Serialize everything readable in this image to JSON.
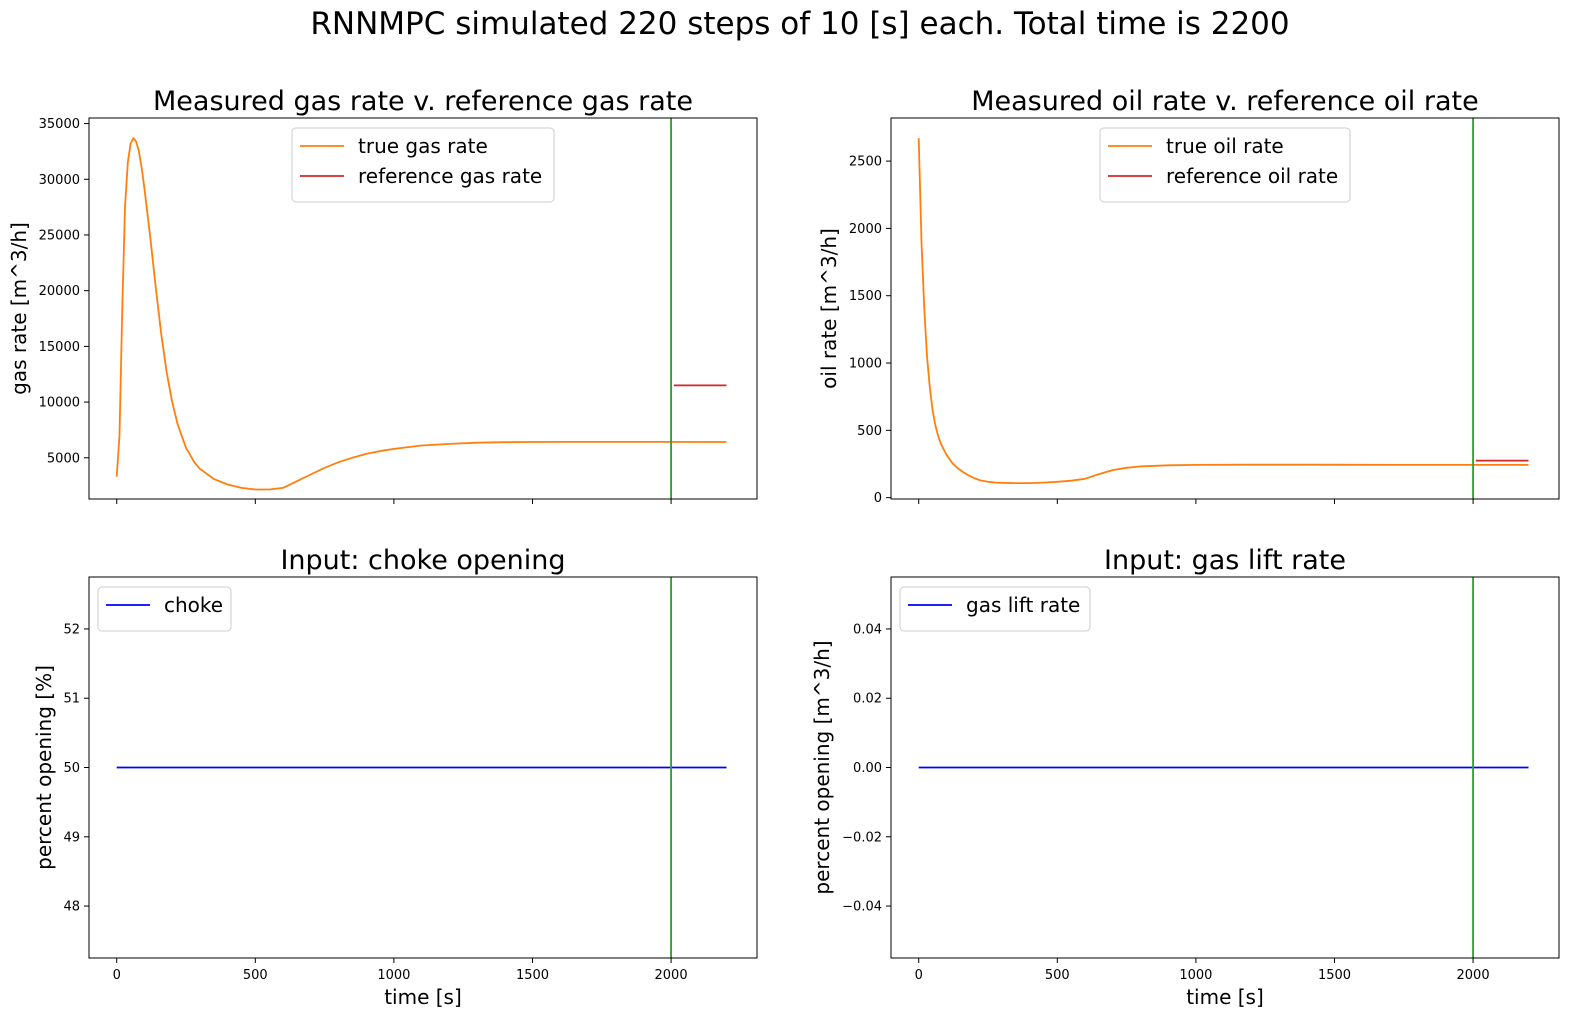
{
  "figure": {
    "suptitle": "RNNMPC simulated 220 steps of 10 [s] each. Total time is 2200"
  },
  "colors": {
    "true_rate": "#ff7f0e",
    "reference": "#d62728",
    "input": "#0000ff",
    "marker": "#2ca02c"
  },
  "chart_data": [
    {
      "type": "line",
      "title": "Measured gas rate v. reference gas rate",
      "xlabel": "",
      "ylabel": "gas rate [m^3/h]",
      "xlim": [
        -100,
        2310
      ],
      "ylim": [
        1300,
        35500
      ],
      "xticks": [
        0,
        500,
        1000,
        1500,
        2000
      ],
      "show_xtick_labels": false,
      "yticks": [
        5000,
        10000,
        15000,
        20000,
        25000,
        30000,
        35000
      ],
      "ytick_labels": [
        "5000",
        "10000",
        "15000",
        "20000",
        "25000",
        "30000",
        "35000"
      ],
      "grid": false,
      "legend": "upper center",
      "vline_x": 2000,
      "series": [
        {
          "name": "true gas rate",
          "color_key": "true_rate",
          "x": [
            0,
            10,
            20,
            30,
            40,
            50,
            60,
            70,
            80,
            90,
            100,
            120,
            140,
            160,
            180,
            200,
            220,
            250,
            280,
            300,
            350,
            400,
            450,
            500,
            550,
            600,
            650,
            700,
            750,
            800,
            850,
            900,
            950,
            1000,
            1100,
            1200,
            1300,
            1400,
            1500,
            1600,
            1700,
            1800,
            1900,
            2000,
            2100,
            2200
          ],
          "y": [
            3300,
            7000,
            18500,
            27500,
            31500,
            33200,
            33700,
            33400,
            32500,
            31000,
            29200,
            25000,
            20500,
            16200,
            12700,
            10000,
            8000,
            5900,
            4600,
            4000,
            3100,
            2600,
            2300,
            2150,
            2150,
            2300,
            2900,
            3500,
            4100,
            4600,
            5000,
            5350,
            5600,
            5800,
            6100,
            6250,
            6350,
            6400,
            6420,
            6430,
            6430,
            6430,
            6430,
            6430,
            6420,
            6420
          ]
        },
        {
          "name": "reference gas rate",
          "color_key": "reference",
          "x": [
            2010,
            2200
          ],
          "y": [
            11500,
            11500
          ]
        }
      ]
    },
    {
      "type": "line",
      "title": "Measured oil rate v. reference oil rate",
      "xlabel": "",
      "ylabel": "oil rate [m^3/h]",
      "xlim": [
        -100,
        2310
      ],
      "ylim": [
        -10,
        2820
      ],
      "xticks": [
        0,
        500,
        1000,
        1500,
        2000
      ],
      "show_xtick_labels": false,
      "yticks": [
        0,
        500,
        1000,
        1500,
        2000,
        2500
      ],
      "ytick_labels": [
        "0",
        "500",
        "1000",
        "1500",
        "2000",
        "2500"
      ],
      "grid": false,
      "legend": "upper center",
      "vline_x": 2000,
      "series": [
        {
          "name": "true oil rate",
          "color_key": "true_rate",
          "x": [
            0,
            10,
            20,
            30,
            40,
            50,
            60,
            70,
            80,
            100,
            120,
            140,
            160,
            180,
            200,
            220,
            250,
            280,
            300,
            350,
            400,
            450,
            500,
            550,
            600,
            650,
            700,
            750,
            800,
            900,
            1000,
            1200,
            1400,
            1600,
            1800,
            2000,
            2200
          ],
          "y": [
            2670,
            1900,
            1400,
            1050,
            820,
            650,
            540,
            460,
            400,
            320,
            260,
            220,
            190,
            165,
            145,
            130,
            118,
            112,
            110,
            108,
            108,
            112,
            118,
            126,
            140,
            175,
            205,
            222,
            232,
            240,
            243,
            245,
            245,
            244,
            243,
            243,
            243
          ]
        },
        {
          "name": "reference oil rate",
          "color_key": "reference",
          "x": [
            2010,
            2200
          ],
          "y": [
            275,
            275
          ]
        }
      ]
    },
    {
      "type": "line",
      "title": "Input: choke opening",
      "xlabel": "time [s]",
      "ylabel": "percent opening [%]",
      "xlim": [
        -100,
        2310
      ],
      "ylim": [
        47.25,
        52.75
      ],
      "xticks": [
        0,
        500,
        1000,
        1500,
        2000
      ],
      "xtick_labels": [
        "0",
        "500",
        "1000",
        "1500",
        "2000"
      ],
      "show_xtick_labels": true,
      "yticks": [
        48,
        49,
        50,
        51,
        52
      ],
      "ytick_labels": [
        "48",
        "49",
        "50",
        "51",
        "52"
      ],
      "grid": false,
      "legend": "upper left",
      "vline_x": 2000,
      "series": [
        {
          "name": "choke",
          "color_key": "input",
          "x": [
            0,
            2200
          ],
          "y": [
            50,
            50
          ]
        }
      ]
    },
    {
      "type": "line",
      "title": "Input: gas lift rate",
      "xlabel": "time [s]",
      "ylabel": "percent opening [m^3/h]",
      "xlim": [
        -100,
        2310
      ],
      "ylim": [
        -0.055,
        0.055
      ],
      "xticks": [
        0,
        500,
        1000,
        1500,
        2000
      ],
      "xtick_labels": [
        "0",
        "500",
        "1000",
        "1500",
        "2000"
      ],
      "show_xtick_labels": true,
      "yticks": [
        -0.04,
        -0.02,
        0.0,
        0.02,
        0.04
      ],
      "ytick_labels": [
        "−0.04",
        "−0.02",
        "0.00",
        "0.02",
        "0.04"
      ],
      "grid": false,
      "legend": "upper left",
      "vline_x": 2000,
      "series": [
        {
          "name": "gas lift rate",
          "color_key": "input",
          "x": [
            0,
            2200
          ],
          "y": [
            0,
            0
          ]
        }
      ]
    }
  ]
}
